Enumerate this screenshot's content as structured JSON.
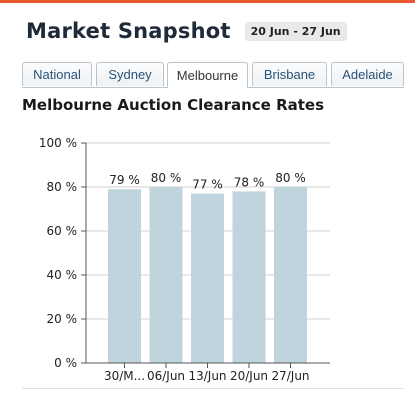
{
  "colors": {
    "accent": "#e9572f",
    "bar": "#bfd4dc",
    "grid": "#d0d0d0",
    "tab_border": "#b9c3cc",
    "tab_text": "#2a5378"
  },
  "header": {
    "title": "Market Snapshot",
    "date_range": "20 Jun - 27 Jun"
  },
  "tabs": [
    {
      "label": "National",
      "active": false
    },
    {
      "label": "Sydney",
      "active": false
    },
    {
      "label": "Melbourne",
      "active": true
    },
    {
      "label": "Brisbane",
      "active": false
    },
    {
      "label": "Adelaide",
      "active": false
    }
  ],
  "section": {
    "title": "Melbourne Auction Clearance Rates"
  },
  "chart_data": {
    "type": "bar",
    "categories": [
      "30/M...",
      "06/Jun",
      "13/Jun",
      "20/Jun",
      "27/Jun"
    ],
    "values": [
      79,
      80,
      77,
      78,
      80
    ],
    "data_labels": [
      "79 %",
      "80 %",
      "77 %",
      "78 %",
      "80 %"
    ],
    "y_ticks": [
      "0 %",
      "20 %",
      "40 %",
      "60 %",
      "80 %",
      "100 %"
    ],
    "ylim": [
      0,
      100
    ],
    "grid": true,
    "title": "",
    "xlabel": "",
    "ylabel": ""
  }
}
